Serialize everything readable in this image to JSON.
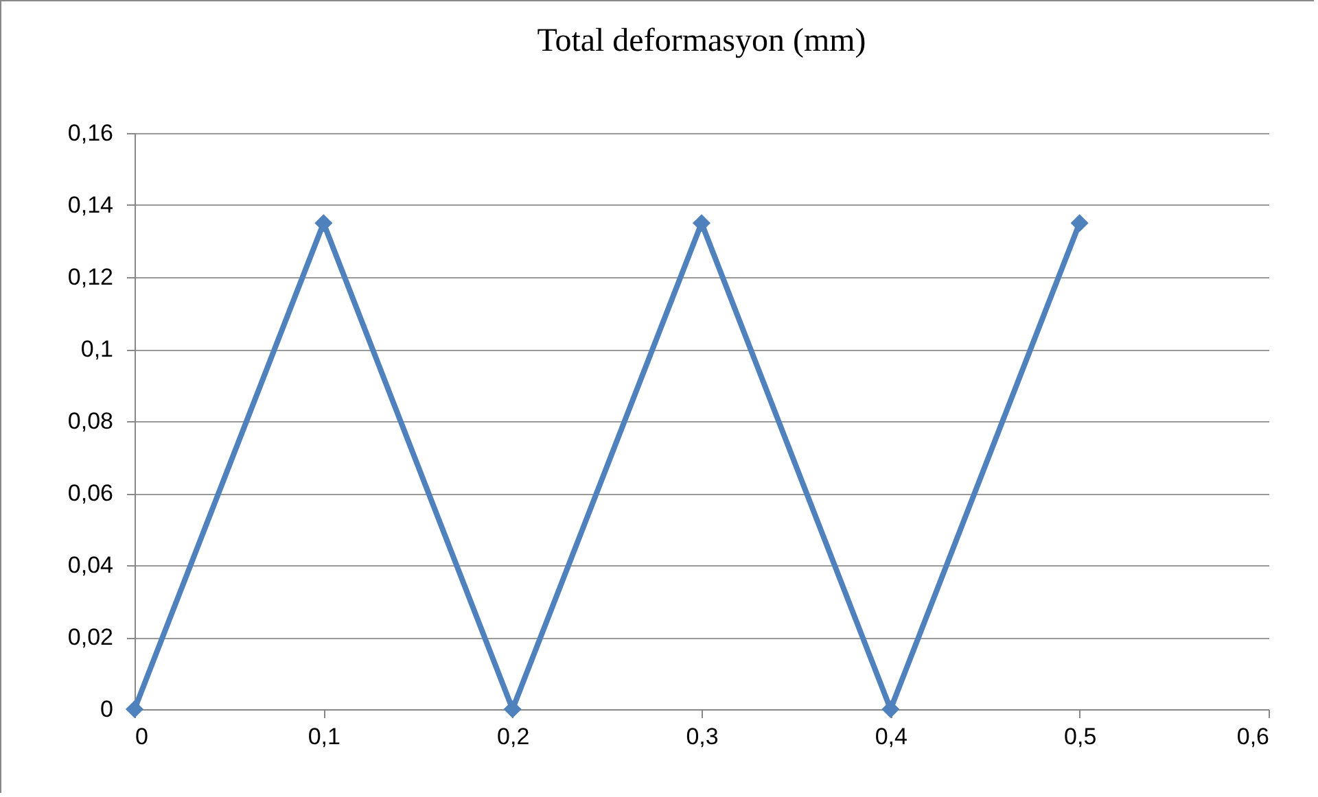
{
  "chart_data": {
    "type": "line",
    "title": "Total deformasyon (mm)",
    "x": [
      0,
      0.1,
      0.2,
      0.3,
      0.4,
      0.5
    ],
    "series": [
      {
        "color": "#4f81bd",
        "values": [
          0,
          0.135,
          0,
          0.135,
          0,
          0.135
        ]
      }
    ],
    "xlim": [
      0,
      0.6
    ],
    "xticks": [
      0,
      {
        "value": 0.1,
        "label": "0,1"
      },
      {
        "value": 0.2,
        "label": "0,2"
      },
      {
        "value": 0.3,
        "label": "0,3"
      },
      {
        "value": 0.4,
        "label": "0,4"
      },
      {
        "value": 0.5,
        "label": "0,5"
      },
      {
        "value": 0.6,
        "label": "0,6"
      }
    ],
    "ylim": [
      0,
      0.16
    ],
    "yticks": [
      0,
      {
        "value": 0.02,
        "label": "0,02"
      },
      {
        "value": 0.04,
        "label": "0,04"
      },
      {
        "value": 0.06,
        "label": "0,06"
      },
      {
        "value": 0.08,
        "label": "0,08"
      },
      {
        "value": 0.1,
        "label": "0,1"
      },
      {
        "value": 0.12,
        "label": "0,12"
      },
      {
        "value": 0.14,
        "label": "0,14"
      },
      {
        "value": 0.16,
        "label": "0,16"
      }
    ],
    "grid": "y",
    "marker": "diamond",
    "line_style": "solid",
    "legend": false
  }
}
